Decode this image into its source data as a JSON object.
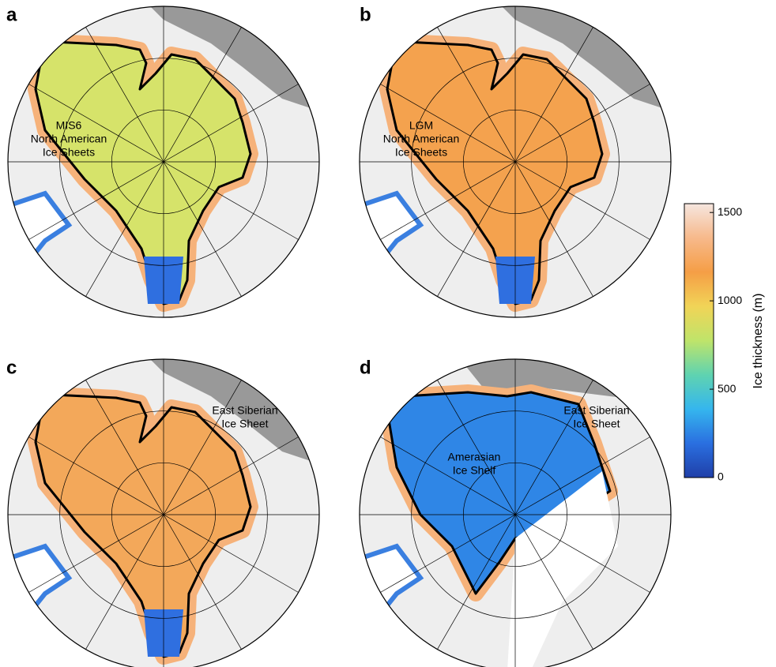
{
  "panels": [
    {
      "label": "a",
      "ice_color": "#d6e36a",
      "annotations": [
        [
          "MIS6",
          "North American",
          "Ice Sheets"
        ]
      ]
    },
    {
      "label": "b",
      "ice_color": "#f4a24e",
      "annotations": [
        [
          "LGM",
          "North American",
          "Ice Sheets"
        ]
      ]
    },
    {
      "label": "c",
      "ice_color": "#f3a85a",
      "annotations": [
        [
          "East Siberian",
          "Ice Sheet"
        ]
      ]
    },
    {
      "label": "d",
      "ice_color": "#2f86e6",
      "annotations": [
        [
          "East Siberian",
          "Ice Sheet"
        ],
        [
          "Amerasian",
          "Ice Shelf"
        ]
      ]
    }
  ],
  "colorbar": {
    "label": "Ice thickness (m)",
    "lim": [
      0,
      1550
    ],
    "ticks": [
      0,
      500,
      1000,
      1500
    ],
    "colors": [
      "#1f3fa8",
      "#2a6fe0",
      "#35b6ee",
      "#5fd3b0",
      "#bfe46a",
      "#f1d457",
      "#f59e46",
      "#f7b98b",
      "#f5e6df"
    ]
  }
}
